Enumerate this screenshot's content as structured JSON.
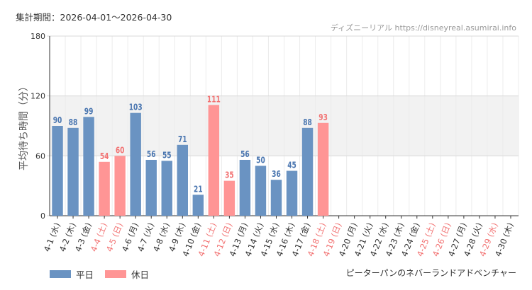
{
  "header": {
    "period_label": "集計期間：2026-04-01～2026-04-30",
    "source_label": "ディズニーリアル https://disneyreal.asumirai.info"
  },
  "footer": {
    "ride_name": "ピーターパンのネバーランドアドベンチャー"
  },
  "colors": {
    "weekday": "#6a93c2",
    "holiday": "#ff9595",
    "weekday_text": "#4a76b0",
    "holiday_text": "#f27272",
    "band": "#f2f2f2"
  },
  "chart_data": {
    "type": "bar",
    "ylabel": "平均待ち時間（分）",
    "ylim": [
      0,
      180
    ],
    "yticks": [
      0,
      60,
      120,
      180
    ],
    "bands": [
      [
        60,
        120
      ]
    ],
    "legend": [
      {
        "key": "weekday",
        "label": "平日"
      },
      {
        "key": "holiday",
        "label": "休日"
      }
    ],
    "categories": [
      "4-1 (水)",
      "4-2 (木)",
      "4-3 (金)",
      "4-4 (土)",
      "4-5 (日)",
      "4-6 (月)",
      "4-7 (火)",
      "4-8 (水)",
      "4-9 (木)",
      "4-10 (金)",
      "4-11 (土)",
      "4-12 (日)",
      "4-13 (月)",
      "4-14 (火)",
      "4-15 (水)",
      "4-16 (木)",
      "4-17 (金)",
      "4-18 (土)",
      "4-19 (日)",
      "4-20 (月)",
      "4-21 (火)",
      "4-22 (水)",
      "4-23 (木)",
      "4-24 (金)",
      "4-25 (土)",
      "4-26 (日)",
      "4-27 (月)",
      "4-28 (火)",
      "4-29 (水)",
      "4-30 (木)"
    ],
    "day_types": [
      "weekday",
      "weekday",
      "weekday",
      "holiday",
      "holiday",
      "weekday",
      "weekday",
      "weekday",
      "weekday",
      "weekday",
      "holiday",
      "holiday",
      "weekday",
      "weekday",
      "weekday",
      "weekday",
      "weekday",
      "holiday",
      "holiday",
      "weekday",
      "weekday",
      "weekday",
      "weekday",
      "weekday",
      "holiday",
      "holiday",
      "weekday",
      "weekday",
      "holiday",
      "weekday"
    ],
    "values": [
      90,
      88,
      99,
      54,
      60,
      103,
      56,
      55,
      71,
      21,
      111,
      35,
      56,
      50,
      36,
      45,
      88,
      93,
      null,
      null,
      null,
      null,
      null,
      null,
      null,
      null,
      null,
      null,
      null,
      null
    ]
  }
}
